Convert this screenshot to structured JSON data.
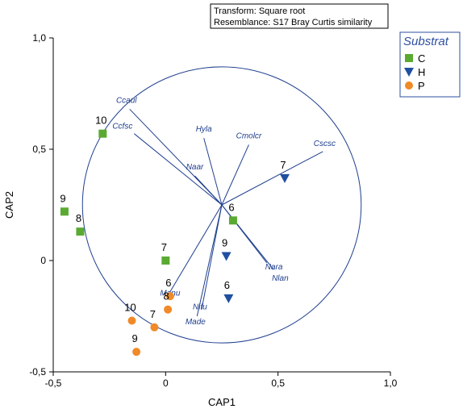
{
  "chart_data": {
    "type": "scatter",
    "xlabel": "CAP1",
    "ylabel": "CAP2",
    "xlim": [
      -0.5,
      1.0
    ],
    "ylim": [
      -0.5,
      1.0
    ],
    "x_ticks": [
      -0.5,
      0,
      0.5,
      1.0
    ],
    "x_tick_labels": [
      "-0,5",
      "0",
      "0,5",
      "1,0"
    ],
    "y_ticks": [
      -0.5,
      0,
      0.5,
      1.0
    ],
    "y_tick_labels": [
      "-0,5",
      "0",
      "0,5",
      "1,0"
    ],
    "info": [
      "Transform: Square root",
      "Resemblance: S17 Bray Curtis similarity"
    ],
    "legend": {
      "title": "Substrat",
      "placement": "top-right"
    },
    "series": [
      {
        "name": "C",
        "marker": "square",
        "color": "#5aaa32",
        "points": [
          {
            "x": -0.28,
            "y": 0.57,
            "label": "10"
          },
          {
            "x": -0.45,
            "y": 0.22,
            "label": "9"
          },
          {
            "x": -0.38,
            "y": 0.13,
            "label": "8"
          },
          {
            "x": 0.0,
            "y": 0.0,
            "label": "7"
          },
          {
            "x": 0.3,
            "y": 0.18,
            "label": "6"
          }
        ]
      },
      {
        "name": "H",
        "marker": "triangle-down",
        "color": "#1f4fa0",
        "points": [
          {
            "x": 0.53,
            "y": 0.37,
            "label": "7"
          },
          {
            "x": 0.27,
            "y": 0.02,
            "label": "9"
          },
          {
            "x": 0.28,
            "y": -0.17,
            "label": "6"
          }
        ]
      },
      {
        "name": "P",
        "marker": "circle",
        "color": "#f08a28",
        "points": [
          {
            "x": 0.02,
            "y": -0.16,
            "label": "6"
          },
          {
            "x": 0.01,
            "y": -0.22,
            "label": "8"
          },
          {
            "x": -0.15,
            "y": -0.27,
            "label": "10"
          },
          {
            "x": -0.05,
            "y": -0.3,
            "label": "7"
          },
          {
            "x": -0.13,
            "y": -0.41,
            "label": "9"
          }
        ]
      }
    ],
    "vector_circle": {
      "center": [
        0.25,
        0.25
      ],
      "radius": 0.62,
      "color": "#1f3f8f"
    },
    "vectors": [
      {
        "name": "Ccaul",
        "end": [
          -0.16,
          0.68
        ]
      },
      {
        "name": "Ccfsc",
        "end": [
          -0.14,
          0.57
        ]
      },
      {
        "name": "Hyla",
        "end": [
          0.17,
          0.55
        ]
      },
      {
        "name": "Naar",
        "end": [
          0.13,
          0.38
        ]
      },
      {
        "name": "Cmolcr",
        "end": [
          0.37,
          0.52
        ]
      },
      {
        "name": "Cscsc",
        "end": [
          0.7,
          0.49
        ]
      },
      {
        "name": "Nara",
        "end": [
          0.45,
          -0.01
        ]
      },
      {
        "name": "Nlan",
        "end": [
          0.48,
          -0.04
        ]
      },
      {
        "name": "Manu",
        "end": [
          0.02,
          -0.14
        ]
      },
      {
        "name": "Made",
        "end": [
          0.14,
          -0.25
        ]
      },
      {
        "name": "Nifu",
        "end": [
          0.16,
          -0.22
        ]
      }
    ]
  }
}
